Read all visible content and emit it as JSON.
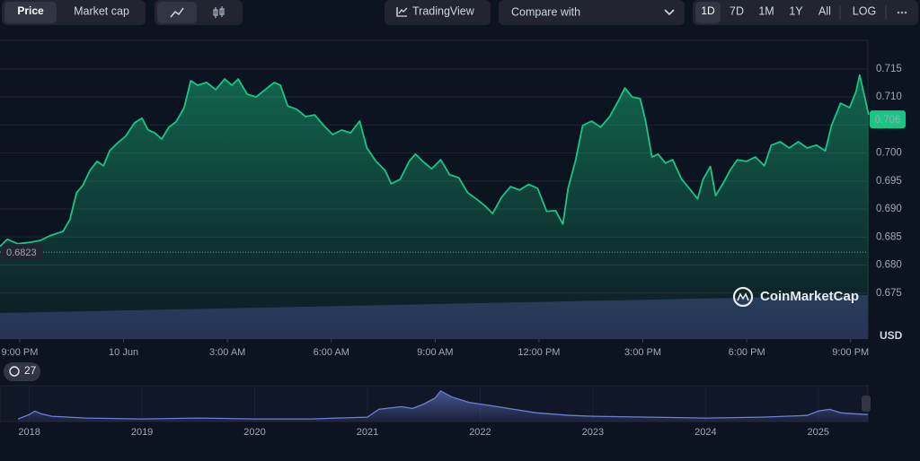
{
  "toolbar": {
    "views": [
      "Price",
      "Market cap"
    ],
    "tradingview": "TradingView",
    "compare": "Compare with",
    "ranges": [
      "1D",
      "7D",
      "1M",
      "1Y",
      "All"
    ],
    "log": "LOG"
  },
  "watermark": "CoinMarketCap",
  "history_badge": "27",
  "chart_data": [
    {
      "type": "line",
      "y_unit": "USD",
      "color": "#16c784",
      "grid": true,
      "xlim": [
        -0.57,
        24.5
      ],
      "xticks": [
        {
          "value": 0,
          "label": "9:00 PM"
        },
        {
          "value": 3,
          "label": "10 Jun"
        },
        {
          "value": 6,
          "label": "3:00 AM"
        },
        {
          "value": 9,
          "label": "6:00 AM"
        },
        {
          "value": 12,
          "label": "9:00 AM"
        },
        {
          "value": 15,
          "label": "12:00 PM"
        },
        {
          "value": 18,
          "label": "3:00 PM"
        },
        {
          "value": 21,
          "label": "6:00 PM"
        },
        {
          "value": 24,
          "label": "9:00 PM"
        }
      ],
      "ylim": [
        0.6668,
        0.7201
      ],
      "yticks": [
        0.675,
        {
          "value": 0.68,
          "label": "0.680"
        },
        0.685,
        {
          "value": 0.69,
          "label": "0.690"
        },
        0.695,
        {
          "value": 0.7,
          "label": "0.700"
        },
        0.705,
        {
          "value": 0.71,
          "label": "0.710"
        },
        0.715
      ],
      "open_price": 0.6823,
      "current_price": 0.706,
      "x": [
        -0.57,
        -0.36,
        -0.05,
        0.34,
        0.6,
        0.86,
        1.25,
        1.45,
        1.64,
        1.82,
        2.03,
        2.23,
        2.42,
        2.6,
        2.81,
        3.06,
        3.32,
        3.53,
        3.71,
        3.9,
        4.1,
        4.31,
        4.52,
        4.75,
        4.94,
        5.14,
        5.4,
        5.66,
        5.92,
        6.13,
        6.31,
        6.57,
        6.83,
        7.09,
        7.35,
        7.53,
        7.74,
        8.0,
        8.26,
        8.52,
        8.78,
        9.04,
        9.3,
        9.56,
        9.82,
        10.03,
        10.29,
        10.55,
        10.73,
        10.99,
        11.25,
        11.43,
        11.64,
        11.9,
        12.16,
        12.42,
        12.68,
        12.94,
        13.19,
        13.45,
        13.66,
        13.92,
        14.18,
        14.44,
        14.7,
        14.96,
        15.22,
        15.48,
        15.69,
        15.84,
        16.05,
        16.26,
        16.52,
        16.78,
        17.04,
        17.3,
        17.48,
        17.69,
        17.92,
        18.08,
        18.26,
        18.44,
        18.65,
        18.86,
        19.12,
        19.38,
        19.58,
        19.74,
        19.95,
        20.1,
        20.31,
        20.52,
        20.73,
        20.99,
        21.25,
        21.51,
        21.71,
        21.97,
        22.23,
        22.49,
        22.75,
        23.01,
        23.27,
        23.45,
        23.71,
        23.97,
        24.16,
        24.26,
        24.42,
        24.52
      ],
      "values": [
        0.6833,
        0.6846,
        0.6838,
        0.6841,
        0.6844,
        0.6852,
        0.686,
        0.6881,
        0.6929,
        0.6942,
        0.6969,
        0.6985,
        0.6977,
        0.7004,
        0.7017,
        0.703,
        0.7054,
        0.7062,
        0.7041,
        0.7036,
        0.7025,
        0.7046,
        0.7056,
        0.7081,
        0.7129,
        0.7121,
        0.7126,
        0.7113,
        0.7132,
        0.7121,
        0.7132,
        0.7105,
        0.71,
        0.7113,
        0.7126,
        0.7121,
        0.7084,
        0.7078,
        0.7065,
        0.7068,
        0.7049,
        0.7033,
        0.7041,
        0.7036,
        0.7057,
        0.7009,
        0.6985,
        0.6969,
        0.6945,
        0.6953,
        0.6985,
        0.6998,
        0.6985,
        0.6972,
        0.6988,
        0.6961,
        0.6956,
        0.6929,
        0.6918,
        0.6905,
        0.6892,
        0.6921,
        0.694,
        0.6934,
        0.6944,
        0.6937,
        0.6896,
        0.6897,
        0.6873,
        0.6937,
        0.6985,
        0.7049,
        0.7057,
        0.7046,
        0.7065,
        0.7094,
        0.7116,
        0.71,
        0.7097,
        0.7057,
        0.6993,
        0.6998,
        0.6982,
        0.6988,
        0.6953,
        0.6934,
        0.6918,
        0.6953,
        0.6976,
        0.6924,
        0.6945,
        0.6969,
        0.6988,
        0.6985,
        0.6993,
        0.6977,
        0.7014,
        0.702,
        0.7009,
        0.702,
        0.7009,
        0.7014,
        0.7004,
        0.7049,
        0.7089,
        0.7081,
        0.711,
        0.7139,
        0.7097,
        0.7068
      ]
    },
    {
      "type": "area",
      "color": "#6b7fd7",
      "xlim": [
        2017.74,
        2025.44
      ],
      "xticks": [
        2018,
        2019,
        2020,
        2021,
        2022,
        2023,
        2024,
        2025
      ],
      "ylim": [
        0,
        40
      ],
      "x": [
        2017.9,
        2018.0,
        2018.05,
        2018.1,
        2018.2,
        2018.5,
        2019.0,
        2019.5,
        2020.0,
        2020.5,
        2021.0,
        2021.1,
        2021.3,
        2021.4,
        2021.5,
        2021.6,
        2021.65,
        2021.75,
        2021.9,
        2022.1,
        2022.3,
        2022.5,
        2022.8,
        2023.0,
        2023.5,
        2024.0,
        2024.5,
        2024.9,
        2025.0,
        2025.1,
        2025.2,
        2025.3,
        2025.44
      ],
      "values": [
        3,
        8,
        12,
        9,
        6,
        4,
        3,
        4,
        3,
        3,
        5,
        14,
        17,
        15,
        20,
        27,
        35,
        28,
        22,
        18,
        14,
        10,
        7,
        6,
        5,
        4,
        5,
        7,
        12,
        14,
        10,
        9,
        8
      ]
    }
  ]
}
